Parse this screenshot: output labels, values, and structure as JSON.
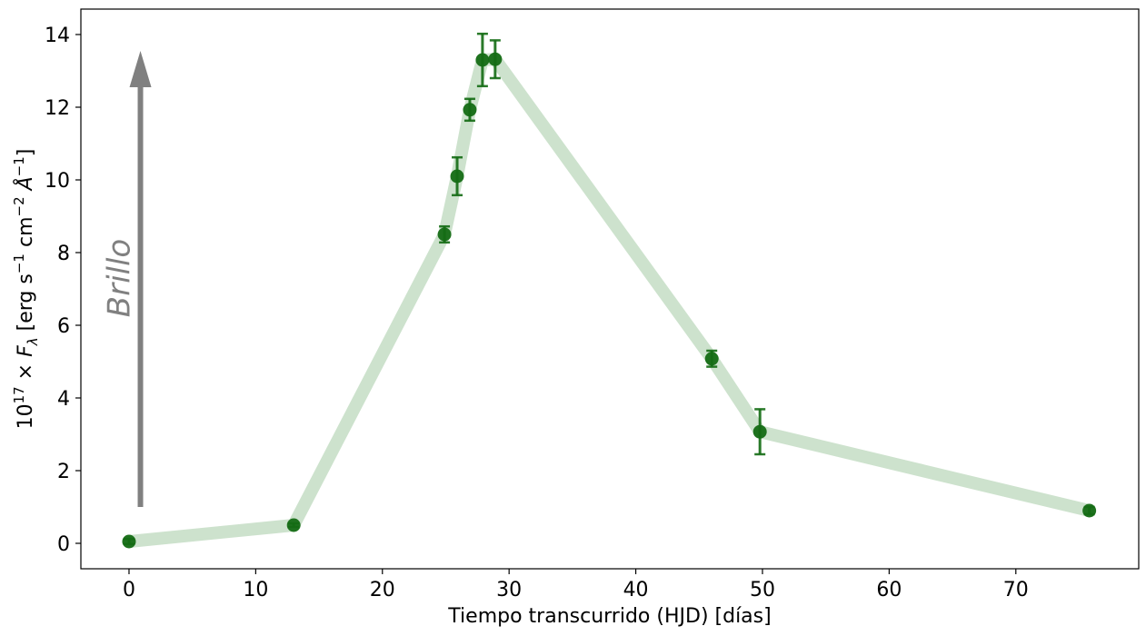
{
  "chart_data": {
    "type": "scatter",
    "xlabel": "Tiempo transcurrido (HJD) [días]",
    "ylabel": "10¹⁷ × Fλ [erg s⁻¹ cm⁻² Å⁻¹]",
    "ylabel_parts": {
      "base": "10",
      "base_exp": "17",
      "times": " × ",
      "symbol": "F",
      "symbol_sub": "λ",
      "unit_open": " [erg s",
      "exp_1": "−1",
      "unit_mid": " cm",
      "exp_2": "−2",
      "unit_angstrom": " Å",
      "exp_3": "−1",
      "unit_close": "]"
    },
    "xlim": [
      -3.8,
      79.7
    ],
    "ylim": [
      -0.7,
      14.7
    ],
    "x_ticks": [
      0,
      10,
      20,
      30,
      40,
      50,
      60,
      70
    ],
    "y_ticks": [
      0,
      2,
      4,
      6,
      8,
      10,
      12,
      14
    ],
    "grid": false,
    "series": [
      {
        "x": [
          0,
          13,
          24.9,
          25.9,
          26.9,
          27.9,
          28.9,
          46,
          49.8,
          75.8
        ],
        "y": [
          0.05,
          0.5,
          8.5,
          10.1,
          11.93,
          13.3,
          13.32,
          5.08,
          3.07,
          0.9
        ],
        "yerr": [
          0.07,
          0.05,
          0.22,
          0.52,
          0.3,
          0.72,
          0.52,
          0.22,
          0.62,
          0.1
        ],
        "marker_color": "#146c14",
        "line_color": "#cde2cd"
      }
    ],
    "annotation": {
      "text": "Brillo",
      "arrow_x": 0.9,
      "arrow_y_start": 1.0,
      "arrow_y_end": 13.55,
      "color": "#808080"
    }
  }
}
